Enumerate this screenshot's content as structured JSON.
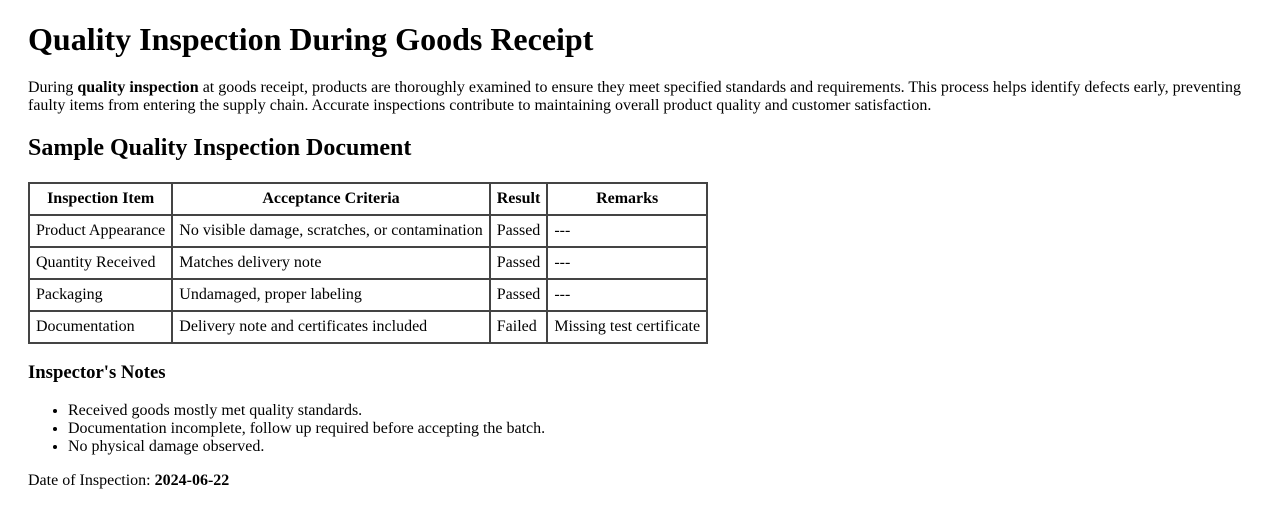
{
  "title": "Quality Inspection During Goods Receipt",
  "intro": {
    "before": "During ",
    "bold": "quality inspection",
    "after": " at goods receipt, products are thoroughly examined to ensure they meet specified standards and requirements. This process helps identify defects early, preventing faulty items from entering the supply chain. Accurate inspections contribute to maintaining overall product quality and customer satisfaction."
  },
  "section_title": "Sample Quality Inspection Document",
  "table": {
    "headers": [
      "Inspection Item",
      "Acceptance Criteria",
      "Result",
      "Remarks"
    ],
    "rows": [
      [
        "Product Appearance",
        "No visible damage, scratches, or contamination",
        "Passed",
        "---"
      ],
      [
        "Quantity Received",
        "Matches delivery note",
        "Passed",
        "---"
      ],
      [
        "Packaging",
        "Undamaged, proper labeling",
        "Passed",
        "---"
      ],
      [
        "Documentation",
        "Delivery note and certificates included",
        "Failed",
        "Missing test certificate"
      ]
    ]
  },
  "notes": {
    "title": "Inspector's Notes",
    "items": [
      "Received goods mostly met quality standards.",
      "Documentation incomplete, follow up required before accepting the batch.",
      "No physical damage observed."
    ]
  },
  "date": {
    "label": "Date of Inspection: ",
    "value": "2024-06-22"
  }
}
